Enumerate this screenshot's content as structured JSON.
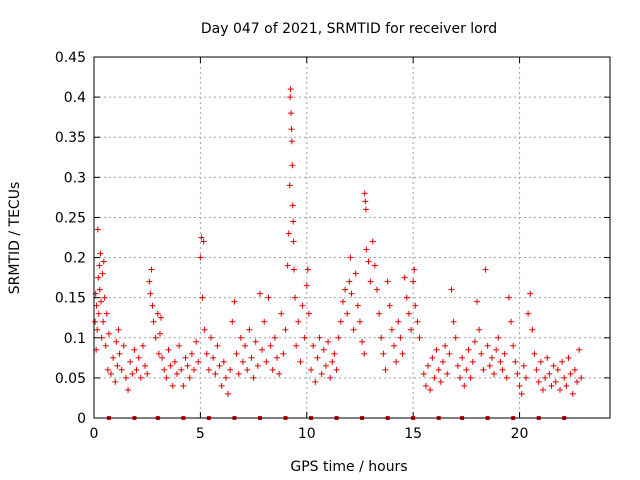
{
  "chart_data": {
    "type": "scatter",
    "title": "Day 047 of 2021, SRMTID for receiver lord",
    "xlabel": "GPS time / hours",
    "ylabel": "SRMTID / TECUs",
    "xlim": [
      0,
      24.25
    ],
    "ylim": [
      0,
      0.45
    ],
    "x_ticks": [
      0,
      5,
      10,
      15,
      20
    ],
    "x_tick_labels": [
      "0",
      "5",
      "10",
      "15",
      "20"
    ],
    "y_ticks": [
      0,
      0.05,
      0.1,
      0.15,
      0.2,
      0.25,
      0.3,
      0.35,
      0.4,
      0.45
    ],
    "y_tick_labels": [
      "0",
      "0.05",
      "0.1",
      "0.15",
      "0.2",
      "0.25",
      "0.3",
      "0.35",
      "0.4",
      "0.45"
    ],
    "grid": true,
    "marker": "+",
    "color": "#e00000",
    "series": [
      {
        "name": "SRMTID",
        "points": [
          [
            0.05,
            0.12
          ],
          [
            0.08,
            0.155
          ],
          [
            0.1,
            0.085
          ],
          [
            0.12,
            0.14
          ],
          [
            0.15,
            0.11
          ],
          [
            0.18,
            0.235
          ],
          [
            0.2,
            0.175
          ],
          [
            0.22,
            0.13
          ],
          [
            0.25,
            0.19
          ],
          [
            0.27,
            0.16
          ],
          [
            0.3,
            0.205
          ],
          [
            0.33,
            0.145
          ],
          [
            0.36,
            0.1
          ],
          [
            0.4,
            0.18
          ],
          [
            0.43,
            0.12
          ],
          [
            0.46,
            0.195
          ],
          [
            0.5,
            0.15
          ],
          [
            0.55,
            0.09
          ],
          [
            0.6,
            0.13
          ],
          [
            0.65,
            0.06
          ],
          [
            0.7,
            0.105
          ],
          [
            0.8,
            0.055
          ],
          [
            0.9,
            0.075
          ],
          [
            1.0,
            0.045
          ],
          [
            1.05,
            0.095
          ],
          [
            1.1,
            0.065
          ],
          [
            1.15,
            0.11
          ],
          [
            1.2,
            0.08
          ],
          [
            1.3,
            0.06
          ],
          [
            1.4,
            0.09
          ],
          [
            1.5,
            0.05
          ],
          [
            1.6,
            0.035
          ],
          [
            1.7,
            0.07
          ],
          [
            1.8,
            0.055
          ],
          [
            1.9,
            0.085
          ],
          [
            2.0,
            0.06
          ],
          [
            2.1,
            0.075
          ],
          [
            2.2,
            0.05
          ],
          [
            2.3,
            0.09
          ],
          [
            2.4,
            0.065
          ],
          [
            2.5,
            0.055
          ],
          [
            2.6,
            0.17
          ],
          [
            2.65,
            0.155
          ],
          [
            2.7,
            0.185
          ],
          [
            2.75,
            0.14
          ],
          [
            2.8,
            0.12
          ],
          [
            2.9,
            0.1
          ],
          [
            3.0,
            0.13
          ],
          [
            3.05,
            0.08
          ],
          [
            3.1,
            0.105
          ],
          [
            3.15,
            0.125
          ],
          [
            3.2,
            0.075
          ],
          [
            3.3,
            0.06
          ],
          [
            3.4,
            0.05
          ],
          [
            3.5,
            0.085
          ],
          [
            3.6,
            0.065
          ],
          [
            3.7,
            0.04
          ],
          [
            3.8,
            0.07
          ],
          [
            3.9,
            0.055
          ],
          [
            4.0,
            0.09
          ],
          [
            4.1,
            0.06
          ],
          [
            4.2,
            0.04
          ],
          [
            4.3,
            0.075
          ],
          [
            4.4,
            0.065
          ],
          [
            4.5,
            0.05
          ],
          [
            4.6,
            0.08
          ],
          [
            4.7,
            0.06
          ],
          [
            4.8,
            0.095
          ],
          [
            4.9,
            0.07
          ],
          [
            5.0,
            0.2
          ],
          [
            5.05,
            0.225
          ],
          [
            5.1,
            0.15
          ],
          [
            5.15,
            0.22
          ],
          [
            5.2,
            0.11
          ],
          [
            5.3,
            0.08
          ],
          [
            5.4,
            0.06
          ],
          [
            5.5,
            0.1
          ],
          [
            5.6,
            0.075
          ],
          [
            5.7,
            0.055
          ],
          [
            5.8,
            0.09
          ],
          [
            5.9,
            0.065
          ],
          [
            6.0,
            0.04
          ],
          [
            6.1,
            0.07
          ],
          [
            6.2,
            0.05
          ],
          [
            6.3,
            0.03
          ],
          [
            6.4,
            0.06
          ],
          [
            6.5,
            0.12
          ],
          [
            6.6,
            0.145
          ],
          [
            6.7,
            0.08
          ],
          [
            6.8,
            0.055
          ],
          [
            6.9,
            0.1
          ],
          [
            7.0,
            0.07
          ],
          [
            7.1,
            0.09
          ],
          [
            7.2,
            0.06
          ],
          [
            7.3,
            0.11
          ],
          [
            7.4,
            0.075
          ],
          [
            7.5,
            0.05
          ],
          [
            7.6,
            0.095
          ],
          [
            7.7,
            0.065
          ],
          [
            7.8,
            0.155
          ],
          [
            7.9,
            0.085
          ],
          [
            8.0,
            0.12
          ],
          [
            8.1,
            0.07
          ],
          [
            8.2,
            0.15
          ],
          [
            8.3,
            0.09
          ],
          [
            8.4,
            0.06
          ],
          [
            8.5,
            0.1
          ],
          [
            8.6,
            0.075
          ],
          [
            8.7,
            0.055
          ],
          [
            8.8,
            0.13
          ],
          [
            8.9,
            0.08
          ],
          [
            9.0,
            0.11
          ],
          [
            9.1,
            0.19
          ],
          [
            9.15,
            0.23
          ],
          [
            9.2,
            0.29
          ],
          [
            9.22,
            0.4
          ],
          [
            9.24,
            0.41
          ],
          [
            9.26,
            0.38
          ],
          [
            9.28,
            0.36
          ],
          [
            9.3,
            0.345
          ],
          [
            9.32,
            0.315
          ],
          [
            9.34,
            0.265
          ],
          [
            9.36,
            0.245
          ],
          [
            9.38,
            0.22
          ],
          [
            9.4,
            0.185
          ],
          [
            9.45,
            0.15
          ],
          [
            9.5,
            0.09
          ],
          [
            9.6,
            0.12
          ],
          [
            9.7,
            0.07
          ],
          [
            9.8,
            0.14
          ],
          [
            9.9,
            0.1
          ],
          [
            10.0,
            0.165
          ],
          [
            10.05,
            0.185
          ],
          [
            10.1,
            0.13
          ],
          [
            10.2,
            0.06
          ],
          [
            10.3,
            0.09
          ],
          [
            10.4,
            0.045
          ],
          [
            10.5,
            0.075
          ],
          [
            10.6,
            0.1
          ],
          [
            10.7,
            0.055
          ],
          [
            10.8,
            0.085
          ],
          [
            10.9,
            0.065
          ],
          [
            11.0,
            0.095
          ],
          [
            11.1,
            0.05
          ],
          [
            11.2,
            0.07
          ],
          [
            11.3,
            0.08
          ],
          [
            11.4,
            0.06
          ],
          [
            11.5,
            0.1
          ],
          [
            11.6,
            0.12
          ],
          [
            11.7,
            0.145
          ],
          [
            11.8,
            0.16
          ],
          [
            11.9,
            0.13
          ],
          [
            12.0,
            0.17
          ],
          [
            12.05,
            0.2
          ],
          [
            12.1,
            0.155
          ],
          [
            12.2,
            0.11
          ],
          [
            12.3,
            0.18
          ],
          [
            12.4,
            0.14
          ],
          [
            12.5,
            0.12
          ],
          [
            12.6,
            0.095
          ],
          [
            12.7,
            0.08
          ],
          [
            12.72,
            0.28
          ],
          [
            12.75,
            0.27
          ],
          [
            12.78,
            0.26
          ],
          [
            12.8,
            0.21
          ],
          [
            12.9,
            0.195
          ],
          [
            13.0,
            0.17
          ],
          [
            13.1,
            0.22
          ],
          [
            13.2,
            0.19
          ],
          [
            13.3,
            0.16
          ],
          [
            13.4,
            0.13
          ],
          [
            13.5,
            0.1
          ],
          [
            13.6,
            0.08
          ],
          [
            13.7,
            0.06
          ],
          [
            13.8,
            0.17
          ],
          [
            13.9,
            0.14
          ],
          [
            14.0,
            0.11
          ],
          [
            14.1,
            0.09
          ],
          [
            14.2,
            0.07
          ],
          [
            14.3,
            0.12
          ],
          [
            14.4,
            0.1
          ],
          [
            14.5,
            0.08
          ],
          [
            14.6,
            0.175
          ],
          [
            14.7,
            0.15
          ],
          [
            14.8,
            0.13
          ],
          [
            14.9,
            0.11
          ],
          [
            15.0,
            0.17
          ],
          [
            15.05,
            0.185
          ],
          [
            15.1,
            0.14
          ],
          [
            15.2,
            0.12
          ],
          [
            15.3,
            0.1
          ],
          [
            15.5,
            0.055
          ],
          [
            15.6,
            0.04
          ],
          [
            15.7,
            0.065
          ],
          [
            15.8,
            0.035
          ],
          [
            15.9,
            0.075
          ],
          [
            16.0,
            0.05
          ],
          [
            16.1,
            0.085
          ],
          [
            16.2,
            0.06
          ],
          [
            16.3,
            0.045
          ],
          [
            16.4,
            0.07
          ],
          [
            16.5,
            0.09
          ],
          [
            16.6,
            0.055
          ],
          [
            16.7,
            0.08
          ],
          [
            16.8,
            0.16
          ],
          [
            16.9,
            0.12
          ],
          [
            17.0,
            0.1
          ],
          [
            17.1,
            0.065
          ],
          [
            17.2,
            0.05
          ],
          [
            17.3,
            0.075
          ],
          [
            17.4,
            0.04
          ],
          [
            17.5,
            0.06
          ],
          [
            17.6,
            0.085
          ],
          [
            17.7,
            0.05
          ],
          [
            17.8,
            0.07
          ],
          [
            17.9,
            0.095
          ],
          [
            18.0,
            0.145
          ],
          [
            18.1,
            0.11
          ],
          [
            18.2,
            0.08
          ],
          [
            18.3,
            0.06
          ],
          [
            18.4,
            0.185
          ],
          [
            18.5,
            0.09
          ],
          [
            18.6,
            0.065
          ],
          [
            18.7,
            0.075
          ],
          [
            18.8,
            0.055
          ],
          [
            18.9,
            0.085
          ],
          [
            19.0,
            0.1
          ],
          [
            19.1,
            0.07
          ],
          [
            19.2,
            0.06
          ],
          [
            19.3,
            0.08
          ],
          [
            19.4,
            0.05
          ],
          [
            19.5,
            0.15
          ],
          [
            19.6,
            0.12
          ],
          [
            19.7,
            0.09
          ],
          [
            19.8,
            0.07
          ],
          [
            19.9,
            0.055
          ],
          [
            20.0,
            0.04
          ],
          [
            20.1,
            0.03
          ],
          [
            20.2,
            0.065
          ],
          [
            20.3,
            0.05
          ],
          [
            20.4,
            0.13
          ],
          [
            20.5,
            0.155
          ],
          [
            20.6,
            0.11
          ],
          [
            20.7,
            0.08
          ],
          [
            20.8,
            0.06
          ],
          [
            20.9,
            0.045
          ],
          [
            21.0,
            0.07
          ],
          [
            21.1,
            0.035
          ],
          [
            21.2,
            0.05
          ],
          [
            21.3,
            0.075
          ],
          [
            21.4,
            0.055
          ],
          [
            21.5,
            0.04
          ],
          [
            21.6,
            0.065
          ],
          [
            21.7,
            0.045
          ],
          [
            21.8,
            0.06
          ],
          [
            21.9,
            0.035
          ],
          [
            22.0,
            0.07
          ],
          [
            22.1,
            0.05
          ],
          [
            22.2,
            0.04
          ],
          [
            22.3,
            0.075
          ],
          [
            22.4,
            0.055
          ],
          [
            22.5,
            0.03
          ],
          [
            22.6,
            0.06
          ],
          [
            22.7,
            0.045
          ],
          [
            22.8,
            0.085
          ],
          [
            22.9,
            0.05
          ]
        ]
      }
    ],
    "zero_markers_x": [
      0.7,
      1.9,
      3.0,
      4.2,
      5.4,
      6.6,
      7.8,
      9.0,
      10.2,
      11.4,
      12.6,
      13.8,
      15.0,
      16.2,
      17.3,
      18.5,
      19.7,
      20.9,
      22.1
    ]
  }
}
